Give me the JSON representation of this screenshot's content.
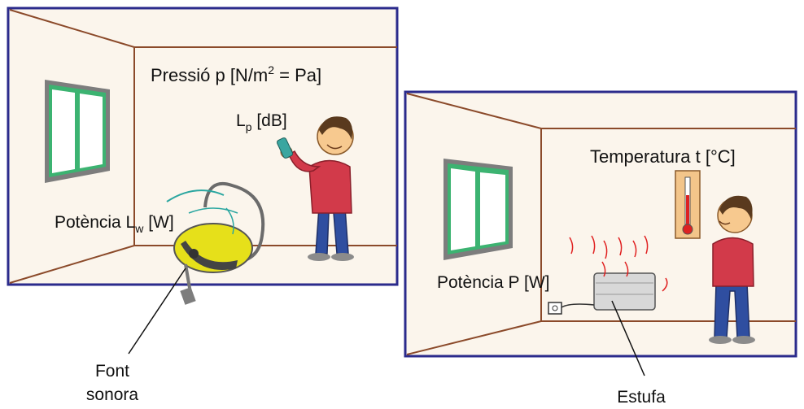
{
  "left_room": {
    "pressure_label": {
      "main": "Pressió p [N/m",
      "sup": "2",
      "rest": " = Pa]"
    },
    "level_label": {
      "main": "L",
      "sub": "p",
      "rest": " [dB]"
    },
    "power_label": {
      "main": "Potència L",
      "sub": "w",
      "rest": " [W]"
    },
    "source_label": {
      "line1": "Font",
      "line2": "sonora"
    }
  },
  "right_room": {
    "temperature_label": "Temperatura t [°C]",
    "power_label": "Potència P [W]",
    "heater_label": "Estufa"
  },
  "colors": {
    "frame": "#2b2b8c",
    "wall": "#fbf5ec",
    "edge": "#8b4a2a",
    "window_green": "#3cb371",
    "shirt": "#d23a4a",
    "trousers": "#2f4ea0",
    "skin": "#f7c98f",
    "hair": "#5a3a1e",
    "vacuum": "#e6e01a",
    "heat_lines": "#e02020"
  }
}
